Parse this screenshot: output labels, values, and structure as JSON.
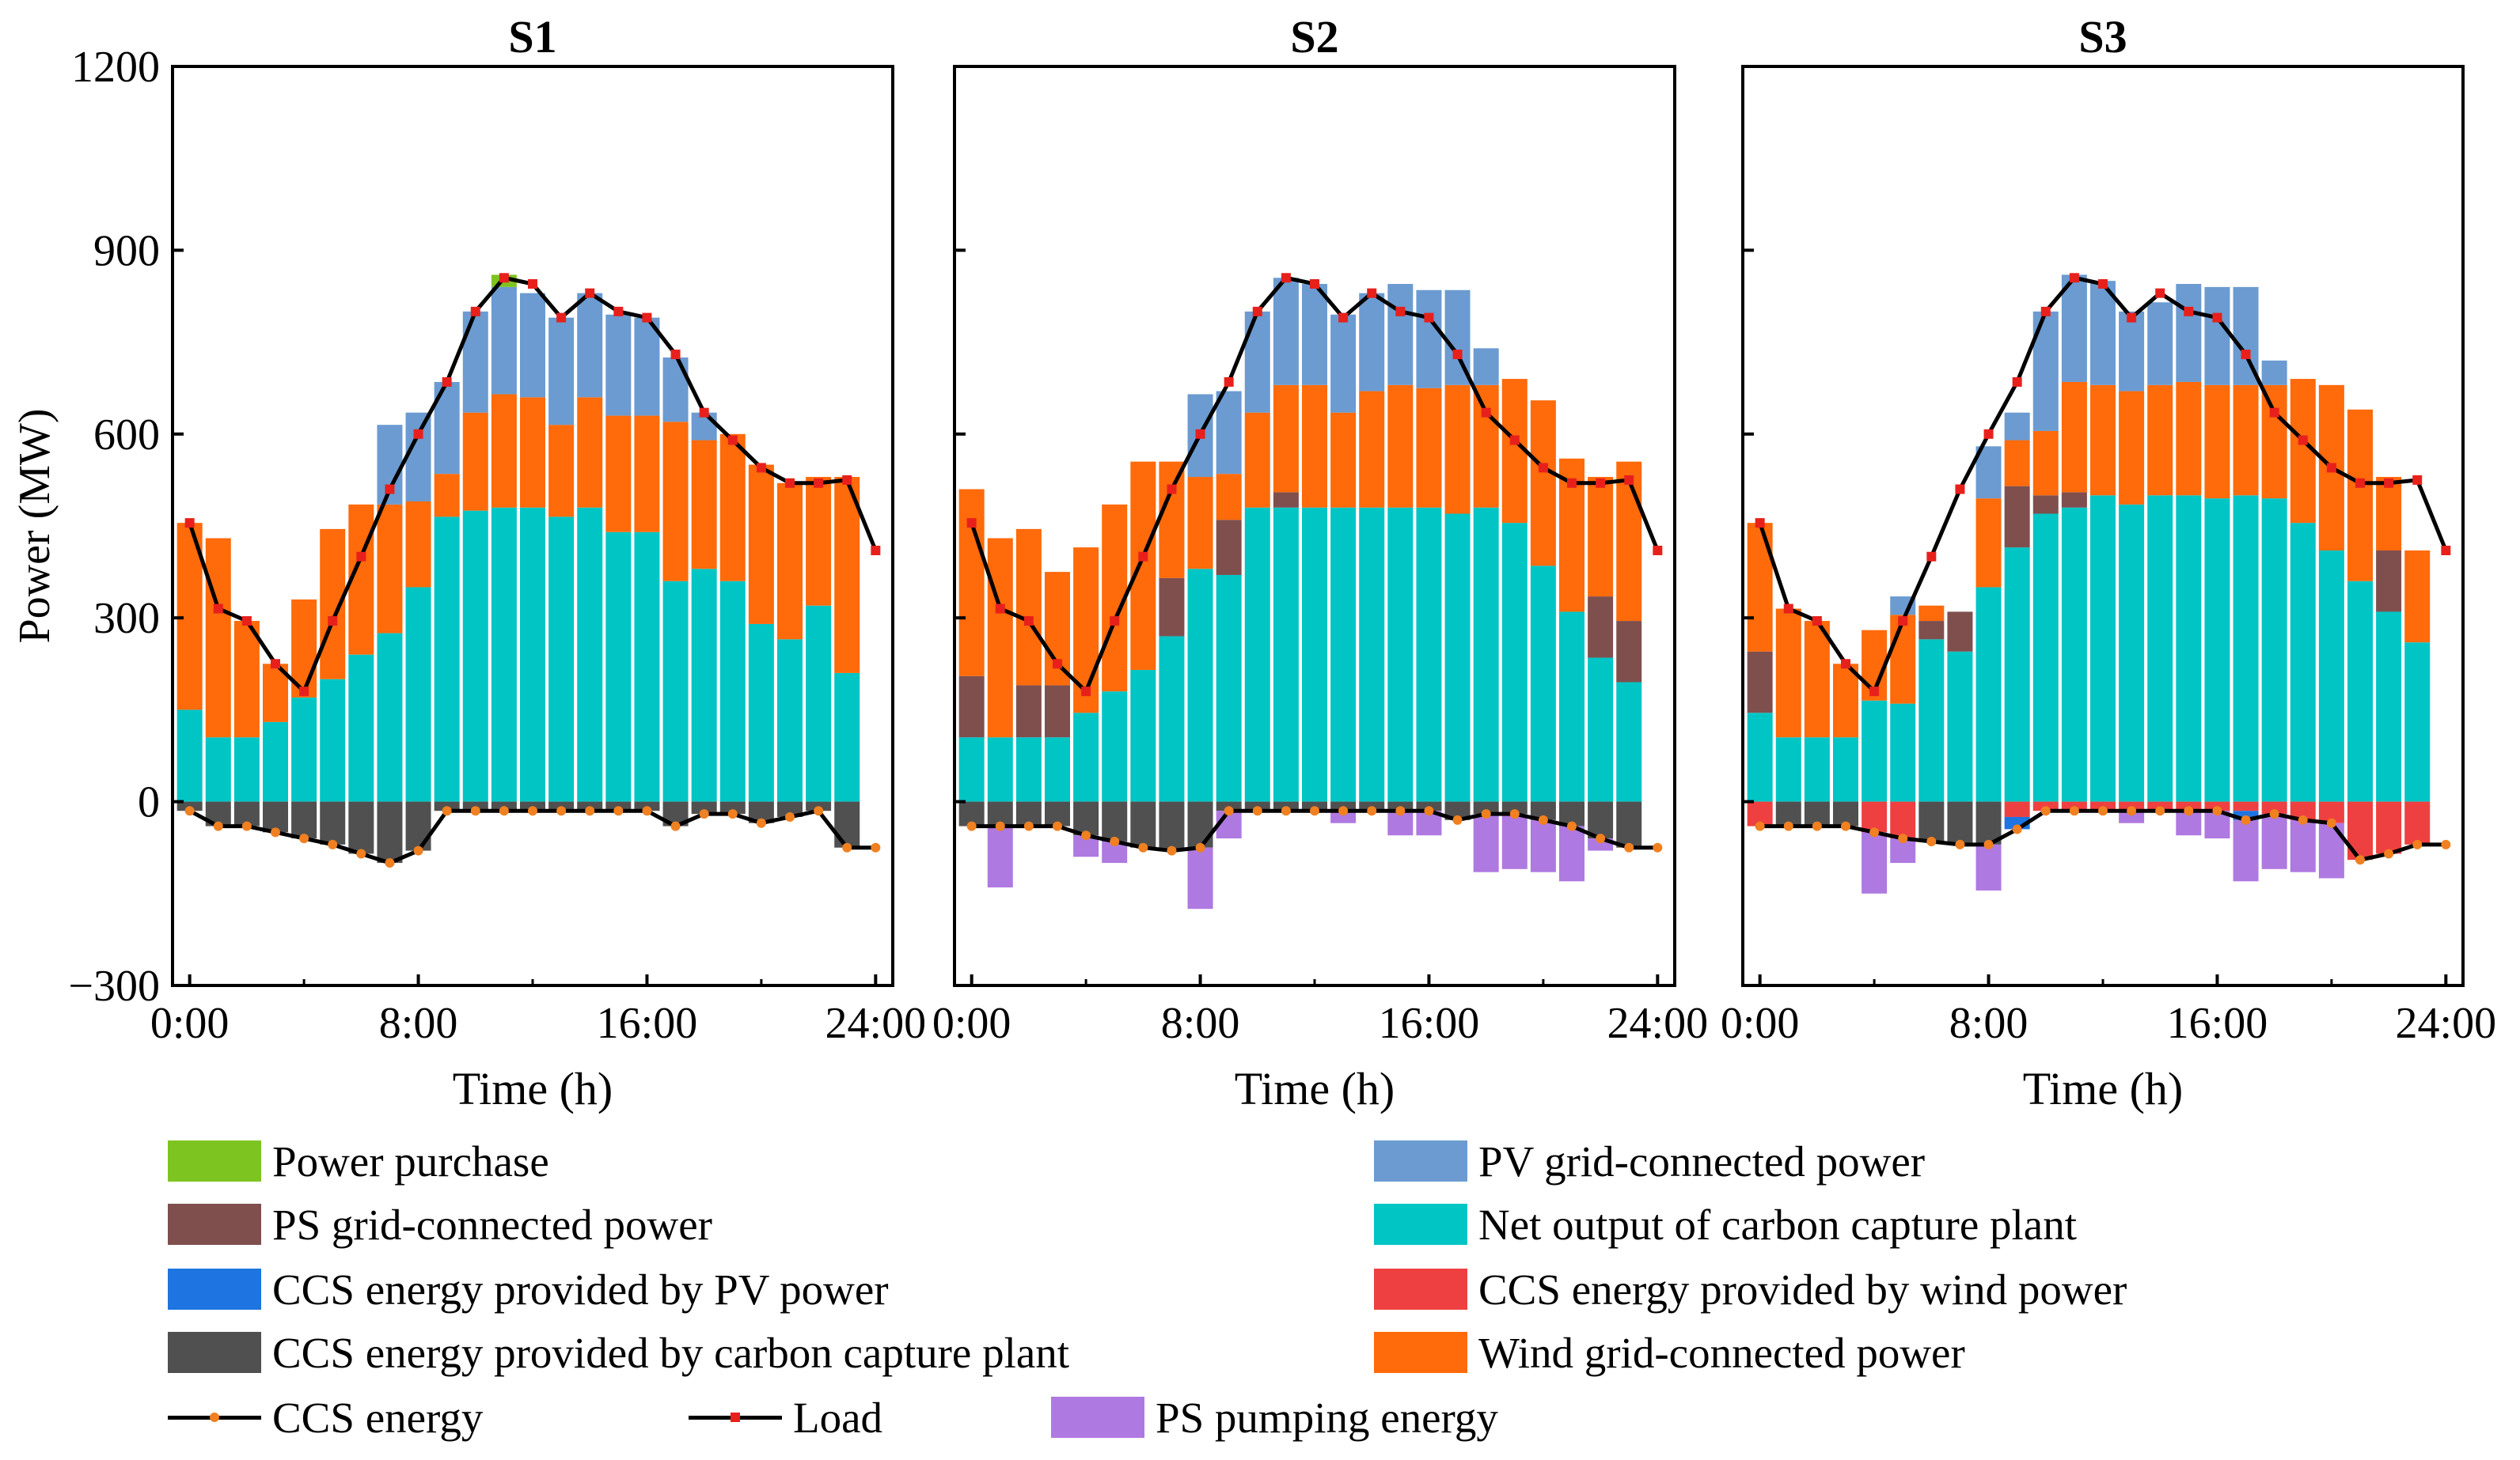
{
  "chart_data": {
    "type": "bar",
    "stacked": true,
    "ylabel": "Power (MW)",
    "xlabel": "Time (h)",
    "ylim": [
      -300,
      1200
    ],
    "yticks": [
      -300,
      0,
      300,
      600,
      900,
      1200
    ],
    "ytick_labels": [
      "−300",
      "0",
      "300",
      "600",
      "900",
      "1200"
    ],
    "xlim": [
      -0.6,
      24.6
    ],
    "xticks": [
      0,
      8,
      16,
      24
    ],
    "xtick_labels": [
      "0:00",
      "8:00",
      "16:00",
      "24:00"
    ],
    "hours": [
      0,
      1,
      2,
      3,
      4,
      5,
      6,
      7,
      8,
      9,
      10,
      11,
      12,
      13,
      14,
      15,
      16,
      17,
      18,
      19,
      20,
      21,
      22,
      23,
      24
    ],
    "colors": {
      "purchase": "#7EC420",
      "ps_grid": "#7F4F4E",
      "ccs_pv": "#1E74E0",
      "ccs_plant": "#505050",
      "pv_grid": "#6B9BD1",
      "net_plant": "#00C5C5",
      "ccs_wind": "#EE4040",
      "wind_grid": "#FF6A0A",
      "ps_pump": "#AE79E0",
      "load_marker": "#E8201C",
      "ccs_marker": "#F08020"
    },
    "panels": [
      {
        "title": "S1",
        "series": {
          "net_plant": [
            150,
            105,
            105,
            130,
            170,
            200,
            240,
            275,
            350,
            465,
            475,
            480,
            480,
            465,
            480,
            440,
            440,
            360,
            380,
            360,
            290,
            265,
            320,
            210,
            0
          ],
          "ps_grid": [
            0,
            0,
            0,
            0,
            0,
            0,
            0,
            0,
            0,
            0,
            0,
            0,
            0,
            0,
            0,
            0,
            0,
            0,
            0,
            0,
            0,
            0,
            0,
            0,
            0
          ],
          "wind_grid": [
            305,
            325,
            190,
            95,
            160,
            245,
            245,
            210,
            140,
            70,
            160,
            185,
            180,
            150,
            180,
            190,
            190,
            260,
            210,
            240,
            260,
            255,
            210,
            320,
            0
          ],
          "pv_grid": [
            0,
            0,
            0,
            0,
            0,
            0,
            0,
            130,
            145,
            150,
            165,
            175,
            170,
            175,
            170,
            165,
            160,
            105,
            45,
            0,
            0,
            0,
            0,
            0,
            0
          ],
          "purchase": [
            0,
            0,
            0,
            0,
            0,
            0,
            0,
            0,
            0,
            0,
            0,
            20,
            0,
            0,
            0,
            0,
            0,
            0,
            0,
            0,
            0,
            0,
            0,
            0,
            0
          ],
          "ccs_plant": [
            -15,
            -40,
            -40,
            -50,
            -60,
            -70,
            -85,
            -100,
            -80,
            -15,
            -15,
            -15,
            -15,
            -15,
            -15,
            -15,
            -15,
            -40,
            -20,
            -20,
            -35,
            -25,
            -15,
            -75,
            0
          ],
          "ccs_wind": [
            0,
            0,
            0,
            0,
            0,
            0,
            0,
            0,
            0,
            0,
            0,
            0,
            0,
            0,
            0,
            0,
            0,
            0,
            0,
            0,
            0,
            0,
            0,
            0,
            0
          ],
          "ccs_pv": [
            0,
            0,
            0,
            0,
            0,
            0,
            0,
            0,
            0,
            0,
            0,
            0,
            0,
            0,
            0,
            0,
            0,
            0,
            0,
            0,
            0,
            0,
            0,
            0,
            0
          ],
          "ps_pump": [
            0,
            0,
            0,
            0,
            0,
            0,
            0,
            0,
            0,
            0,
            0,
            0,
            0,
            0,
            0,
            0,
            0,
            0,
            0,
            0,
            0,
            0,
            0,
            0,
            0
          ],
          "load": [
            455,
            315,
            295,
            225,
            180,
            295,
            400,
            510,
            600,
            685,
            800,
            855,
            845,
            790,
            830,
            800,
            790,
            730,
            635,
            590,
            545,
            520,
            520,
            410,
            0
          ],
          "ccs_energy": [
            -15,
            -40,
            -40,
            -50,
            -60,
            -70,
            -85,
            -100,
            -80,
            -15,
            -15,
            -15,
            -15,
            -15,
            -15,
            -15,
            -15,
            -40,
            -20,
            -20,
            -35,
            -25,
            -15,
            -75,
            0
          ]
        }
      },
      {
        "title": "S2",
        "series": {
          "net_plant": [
            105,
            105,
            105,
            105,
            145,
            180,
            215,
            270,
            380,
            370,
            480,
            480,
            480,
            480,
            480,
            480,
            480,
            470,
            480,
            455,
            385,
            310,
            235,
            195,
            0
          ],
          "ps_grid": [
            100,
            0,
            85,
            85,
            0,
            0,
            0,
            95,
            0,
            90,
            0,
            25,
            0,
            0,
            0,
            0,
            0,
            0,
            0,
            0,
            0,
            0,
            100,
            100,
            0
          ],
          "wind_grid": [
            305,
            325,
            255,
            185,
            270,
            305,
            340,
            190,
            150,
            75,
            155,
            175,
            200,
            155,
            190,
            200,
            195,
            210,
            200,
            235,
            270,
            250,
            195,
            260,
            0
          ],
          "pv_grid": [
            0,
            0,
            0,
            0,
            0,
            0,
            0,
            0,
            135,
            135,
            165,
            175,
            165,
            160,
            160,
            165,
            160,
            155,
            60,
            0,
            0,
            0,
            0,
            0,
            0
          ],
          "purchase": [
            0,
            0,
            0,
            0,
            0,
            0,
            0,
            0,
            0,
            0,
            0,
            0,
            0,
            0,
            0,
            0,
            0,
            0,
            0,
            0,
            0,
            0,
            0,
            0,
            0
          ],
          "ccs_plant": [
            -40,
            -40,
            -40,
            -40,
            -55,
            -65,
            -75,
            -80,
            -75,
            -15,
            -15,
            -15,
            -15,
            -15,
            -15,
            -15,
            -15,
            -30,
            -20,
            -20,
            -30,
            -40,
            -60,
            -75,
            0
          ],
          "ccs_wind": [
            0,
            0,
            0,
            0,
            0,
            0,
            0,
            0,
            0,
            0,
            0,
            0,
            0,
            0,
            0,
            0,
            0,
            0,
            0,
            0,
            0,
            0,
            0,
            0,
            0
          ],
          "ccs_pv": [
            0,
            0,
            0,
            0,
            0,
            0,
            0,
            0,
            0,
            0,
            0,
            0,
            0,
            0,
            0,
            0,
            0,
            0,
            0,
            0,
            0,
            0,
            0,
            0,
            0
          ],
          "ps_pump": [
            0,
            -100,
            0,
            0,
            -35,
            -35,
            0,
            0,
            -100,
            -45,
            0,
            0,
            0,
            -20,
            0,
            -40,
            -40,
            0,
            -95,
            -90,
            -85,
            -90,
            -20,
            0,
            0
          ],
          "load": [
            455,
            315,
            295,
            225,
            180,
            295,
            400,
            510,
            600,
            685,
            800,
            855,
            845,
            790,
            830,
            800,
            790,
            730,
            635,
            590,
            545,
            520,
            520,
            410,
            0
          ],
          "ccs_energy": [
            -40,
            -40,
            -40,
            -40,
            -55,
            -65,
            -75,
            -80,
            -75,
            -15,
            -15,
            -15,
            -15,
            -15,
            -15,
            -15,
            -15,
            -30,
            -20,
            -20,
            -30,
            -40,
            -60,
            -75,
            0
          ]
        }
      },
      {
        "title": "S3",
        "series": {
          "net_plant": [
            145,
            105,
            105,
            105,
            165,
            160,
            265,
            245,
            350,
            415,
            470,
            480,
            500,
            485,
            500,
            500,
            495,
            500,
            495,
            455,
            410,
            360,
            310,
            260,
            0
          ],
          "ps_grid": [
            100,
            0,
            0,
            0,
            0,
            0,
            30,
            65,
            0,
            100,
            30,
            25,
            0,
            0,
            0,
            0,
            0,
            0,
            0,
            0,
            0,
            0,
            100,
            0,
            0
          ],
          "wind_grid": [
            210,
            210,
            190,
            120,
            115,
            145,
            25,
            0,
            145,
            75,
            105,
            180,
            180,
            185,
            180,
            185,
            185,
            180,
            185,
            235,
            270,
            280,
            120,
            150,
            0
          ],
          "pv_grid": [
            0,
            0,
            0,
            0,
            0,
            30,
            0,
            0,
            85,
            45,
            195,
            175,
            170,
            130,
            135,
            160,
            160,
            160,
            40,
            0,
            0,
            0,
            0,
            0,
            0
          ],
          "purchase": [
            0,
            0,
            0,
            0,
            0,
            0,
            0,
            0,
            0,
            0,
            0,
            0,
            0,
            0,
            0,
            0,
            0,
            0,
            0,
            0,
            0,
            0,
            0,
            0,
            0
          ],
          "ccs_plant": [
            0,
            -40,
            -40,
            -40,
            0,
            0,
            -65,
            -70,
            -70,
            0,
            0,
            0,
            0,
            0,
            0,
            0,
            0,
            0,
            0,
            0,
            0,
            0,
            0,
            0,
            0
          ],
          "ccs_wind": [
            -40,
            0,
            0,
            0,
            -50,
            -60,
            0,
            0,
            0,
            -25,
            -15,
            -15,
            -15,
            -15,
            -15,
            -15,
            -15,
            -15,
            -20,
            -30,
            -35,
            -95,
            -85,
            -70,
            0
          ],
          "ccs_pv": [
            0,
            0,
            0,
            0,
            0,
            0,
            0,
            0,
            0,
            -20,
            0,
            0,
            0,
            0,
            0,
            0,
            0,
            -15,
            0,
            0,
            0,
            0,
            0,
            0,
            0
          ],
          "ps_pump": [
            0,
            0,
            0,
            0,
            -100,
            -40,
            0,
            0,
            -75,
            0,
            0,
            0,
            0,
            -20,
            0,
            -40,
            -45,
            -100,
            -90,
            -85,
            -90,
            0,
            0,
            0,
            0
          ],
          "load": [
            455,
            315,
            295,
            225,
            180,
            295,
            400,
            510,
            600,
            685,
            800,
            855,
            845,
            790,
            830,
            800,
            790,
            730,
            635,
            590,
            545,
            520,
            520,
            410,
            0
          ],
          "ccs_energy": [
            -40,
            -40,
            -40,
            -40,
            -50,
            -60,
            -65,
            -70,
            -70,
            -45,
            -15,
            -15,
            -15,
            -15,
            -15,
            -15,
            -15,
            -30,
            -20,
            -30,
            -35,
            -95,
            -85,
            -70,
            0
          ]
        }
      }
    ],
    "legend": [
      {
        "key": "purchase",
        "label": "Power purchase"
      },
      {
        "key": "ps_grid",
        "label": "PS grid-connected power"
      },
      {
        "key": "ccs_pv",
        "label": "CCS energy provided by PV power"
      },
      {
        "key": "ccs_plant",
        "label": "CCS energy provided by carbon capture plant"
      },
      {
        "key": "pv_grid",
        "label": "PV grid-connected power"
      },
      {
        "key": "net_plant",
        "label": "Net output of carbon capture plant"
      },
      {
        "key": "ccs_wind",
        "label": "CCS energy provided by wind power"
      },
      {
        "key": "wind_grid",
        "label": "Wind grid-connected power"
      },
      {
        "key": "ccs_line",
        "label": "CCS energy"
      },
      {
        "key": "load_line",
        "label": "Load"
      },
      {
        "key": "ps_pump",
        "label": "PS pumping energy"
      }
    ]
  }
}
